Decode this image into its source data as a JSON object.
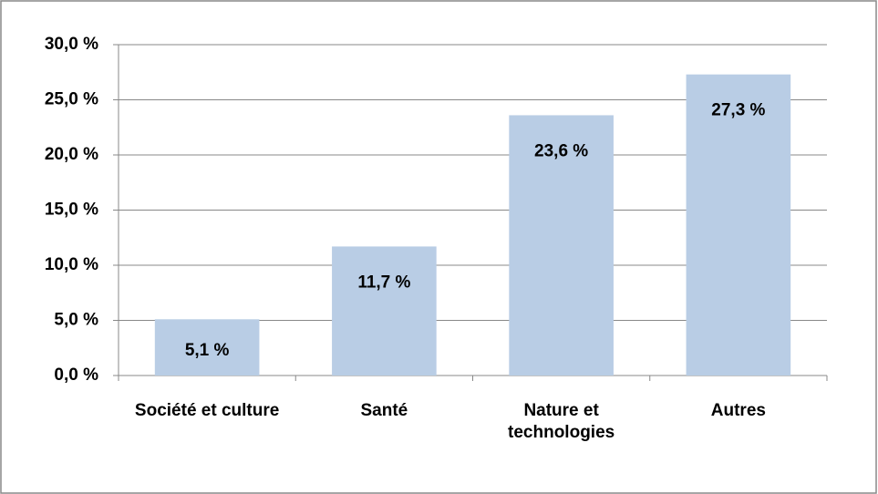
{
  "chart_data": {
    "type": "bar",
    "categories": [
      "Société et culture",
      "Santé",
      "Nature et technologies",
      "Autres"
    ],
    "values": [
      5.1,
      11.7,
      23.6,
      27.3
    ],
    "value_labels": [
      "5,1 %",
      "11,7 %",
      "23,6 %",
      "27,3 %"
    ],
    "color": "#b9cde5",
    "ylim": [
      0,
      30
    ],
    "yticks": [
      {
        "value": 0,
        "label": "0,0 %"
      },
      {
        "value": 5,
        "label": "5,0 %"
      },
      {
        "value": 10,
        "label": "10,0 %"
      },
      {
        "value": 15,
        "label": "15,0 %"
      },
      {
        "value": 20,
        "label": "20,0 %"
      },
      {
        "value": 25,
        "label": "25,0 %"
      },
      {
        "value": 30,
        "label": "30,0 %"
      }
    ],
    "grid": true
  }
}
